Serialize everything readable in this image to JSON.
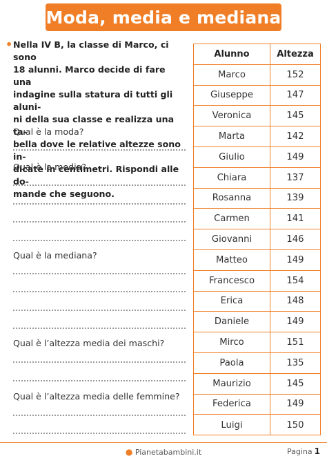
{
  "title": "Moda, media e mediana",
  "intro": "Nella IV B, la classe di Marco, ci sono 18 alunni. Marco decide di fare una indagine sulla statura di tutti gli alunni della sua classe e realizza una tabella dove le relative altezze sono indicate in centimetri. Rispondi alle domande che seguono.",
  "intro_lines": [
    "Nella IV B, la classe di Marco, ci sono",
    "18 alunni. Marco decide di fare una",
    "indagine sulla statura di tutti gli aluni-",
    "ni della sua classe e realizza una ta-",
    "bella dove le relative altezze sono in-",
    "dicate in centimetri. Rispondi alle do-",
    "mande che seguono."
  ],
  "questions": [
    "Qual è la moda?",
    "Qual è la media?",
    "Qual è la mediana?",
    "Qual è l’altezza media dei maschi?",
    "Qual è l’altezza media delle femmine?"
  ],
  "table": {
    "headers": [
      "Alunno",
      "Altezza"
    ],
    "rows": [
      {
        "name": "Marco",
        "height": "152"
      },
      {
        "name": "Giuseppe",
        "height": "147"
      },
      {
        "name": "Veronica",
        "height": "145"
      },
      {
        "name": "Marta",
        "height": "142"
      },
      {
        "name": "Giulio",
        "height": "149"
      },
      {
        "name": "Chiara",
        "height": "137"
      },
      {
        "name": "Rosanna",
        "height": "139"
      },
      {
        "name": "Carmen",
        "height": "141"
      },
      {
        "name": "Giovanni",
        "height": "146"
      },
      {
        "name": "Matteo",
        "height": "149"
      },
      {
        "name": "Francesco",
        "height": "154"
      },
      {
        "name": "Erica",
        "height": "148"
      },
      {
        "name": "Daniele",
        "height": "149"
      },
      {
        "name": "Mirco",
        "height": "151"
      },
      {
        "name": "Paola",
        "height": "135"
      },
      {
        "name": "Maurizio",
        "height": "145"
      },
      {
        "name": "Federica",
        "height": "149"
      },
      {
        "name": "Luigi",
        "height": "150"
      }
    ]
  },
  "footer": {
    "site": "Pianetabambini.it",
    "page_label": "Pagina",
    "page_number": "1"
  },
  "colors": {
    "accent": "#f07e26",
    "title_text": "#ffffff"
  }
}
